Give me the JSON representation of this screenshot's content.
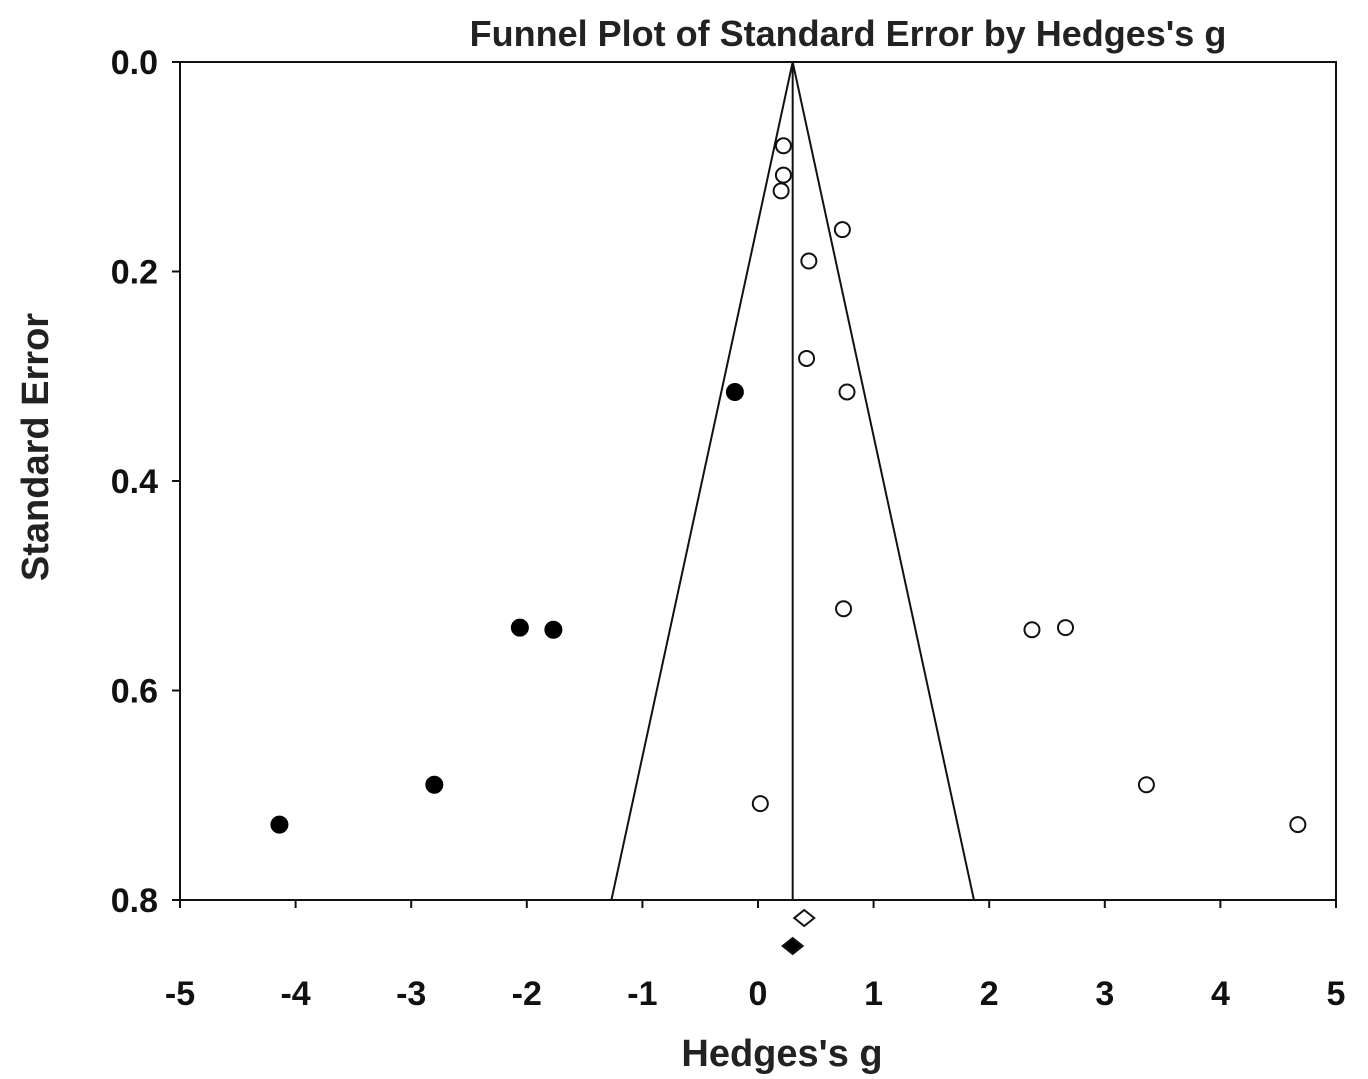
{
  "chart_data": {
    "type": "scatter",
    "title": "Funnel Plot of Standard Error by Hedges's g",
    "xlabel": "Hedges's g",
    "ylabel": "Standard Error",
    "xlim": [
      -5,
      5
    ],
    "ylim": [
      0.0,
      0.8
    ],
    "y_inverted": true,
    "x_ticks": [
      "-5",
      "-4",
      "-3",
      "-2",
      "-1",
      "0",
      "1",
      "2",
      "3",
      "4",
      "5"
    ],
    "y_ticks": [
      "0.0",
      "0.2",
      "0.4",
      "0.6",
      "0.8"
    ],
    "grid": false,
    "mean_effect": 0.3,
    "funnel_z": 1.96,
    "series": [
      {
        "marker": "open-circle",
        "color": "#111111",
        "points": [
          {
            "x": 0.22,
            "y": 0.08
          },
          {
            "x": 0.22,
            "y": 0.108
          },
          {
            "x": 0.2,
            "y": 0.123
          },
          {
            "x": 0.73,
            "y": 0.16
          },
          {
            "x": 0.44,
            "y": 0.19
          },
          {
            "x": 0.42,
            "y": 0.283
          },
          {
            "x": 0.77,
            "y": 0.315
          },
          {
            "x": 0.74,
            "y": 0.522
          },
          {
            "x": 2.37,
            "y": 0.542
          },
          {
            "x": 2.66,
            "y": 0.54
          },
          {
            "x": 0.02,
            "y": 0.708
          },
          {
            "x": 3.36,
            "y": 0.69
          },
          {
            "x": 4.67,
            "y": 0.728
          }
        ]
      },
      {
        "marker": "filled-circle",
        "color": "#000000",
        "points": [
          {
            "x": -0.2,
            "y": 0.315
          },
          {
            "x": -2.06,
            "y": 0.54
          },
          {
            "x": -1.77,
            "y": 0.542
          },
          {
            "x": -2.8,
            "y": 0.69
          },
          {
            "x": -4.14,
            "y": 0.728
          }
        ]
      }
    ],
    "summary": [
      {
        "marker": "open-diamond",
        "x": 0.4
      },
      {
        "marker": "filled-diamond",
        "x": 0.3
      }
    ]
  }
}
